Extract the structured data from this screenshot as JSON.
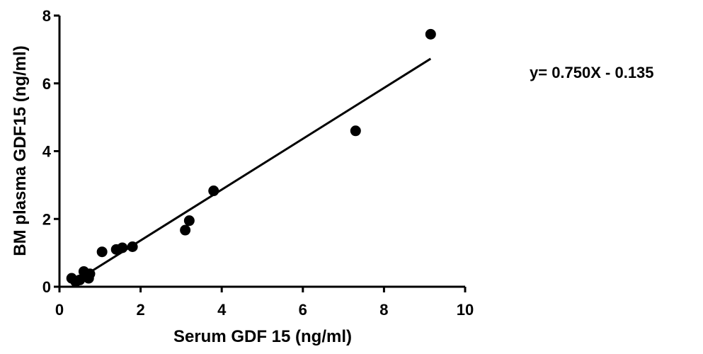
{
  "chart_data": {
    "type": "scatter",
    "title": "",
    "xlabel": "Serum GDF 15 (ng/ml)",
    "ylabel": "BM plasma GDF15 (ng/ml)",
    "xlim": [
      0,
      10
    ],
    "ylim": [
      0,
      8
    ],
    "xticks": [
      0,
      2,
      4,
      6,
      8,
      10
    ],
    "yticks": [
      0,
      2,
      4,
      6,
      8
    ],
    "xtick_labels": [
      "0",
      "2",
      "4",
      "6",
      "8",
      "10"
    ],
    "ytick_labels": [
      "0",
      "2",
      "4",
      "6",
      "8"
    ],
    "grid": false,
    "legend": "none",
    "annotation": "y= 0.750X - 0.135",
    "points": [
      {
        "x": 0.3,
        "y": 0.25
      },
      {
        "x": 0.4,
        "y": 0.15
      },
      {
        "x": 0.5,
        "y": 0.2
      },
      {
        "x": 0.6,
        "y": 0.45
      },
      {
        "x": 0.72,
        "y": 0.25
      },
      {
        "x": 0.75,
        "y": 0.38
      },
      {
        "x": 1.05,
        "y": 1.03
      },
      {
        "x": 1.4,
        "y": 1.1
      },
      {
        "x": 1.55,
        "y": 1.15
      },
      {
        "x": 1.8,
        "y": 1.18
      },
      {
        "x": 3.1,
        "y": 1.67
      },
      {
        "x": 3.2,
        "y": 1.95
      },
      {
        "x": 3.8,
        "y": 2.83
      },
      {
        "x": 7.3,
        "y": 4.6
      },
      {
        "x": 9.15,
        "y": 7.45
      }
    ],
    "regression": {
      "slope": 0.75,
      "intercept": -0.135,
      "x_start": 0.6,
      "x_end": 9.15
    },
    "colors": {
      "marker": "#000000",
      "line": "#000000"
    }
  }
}
